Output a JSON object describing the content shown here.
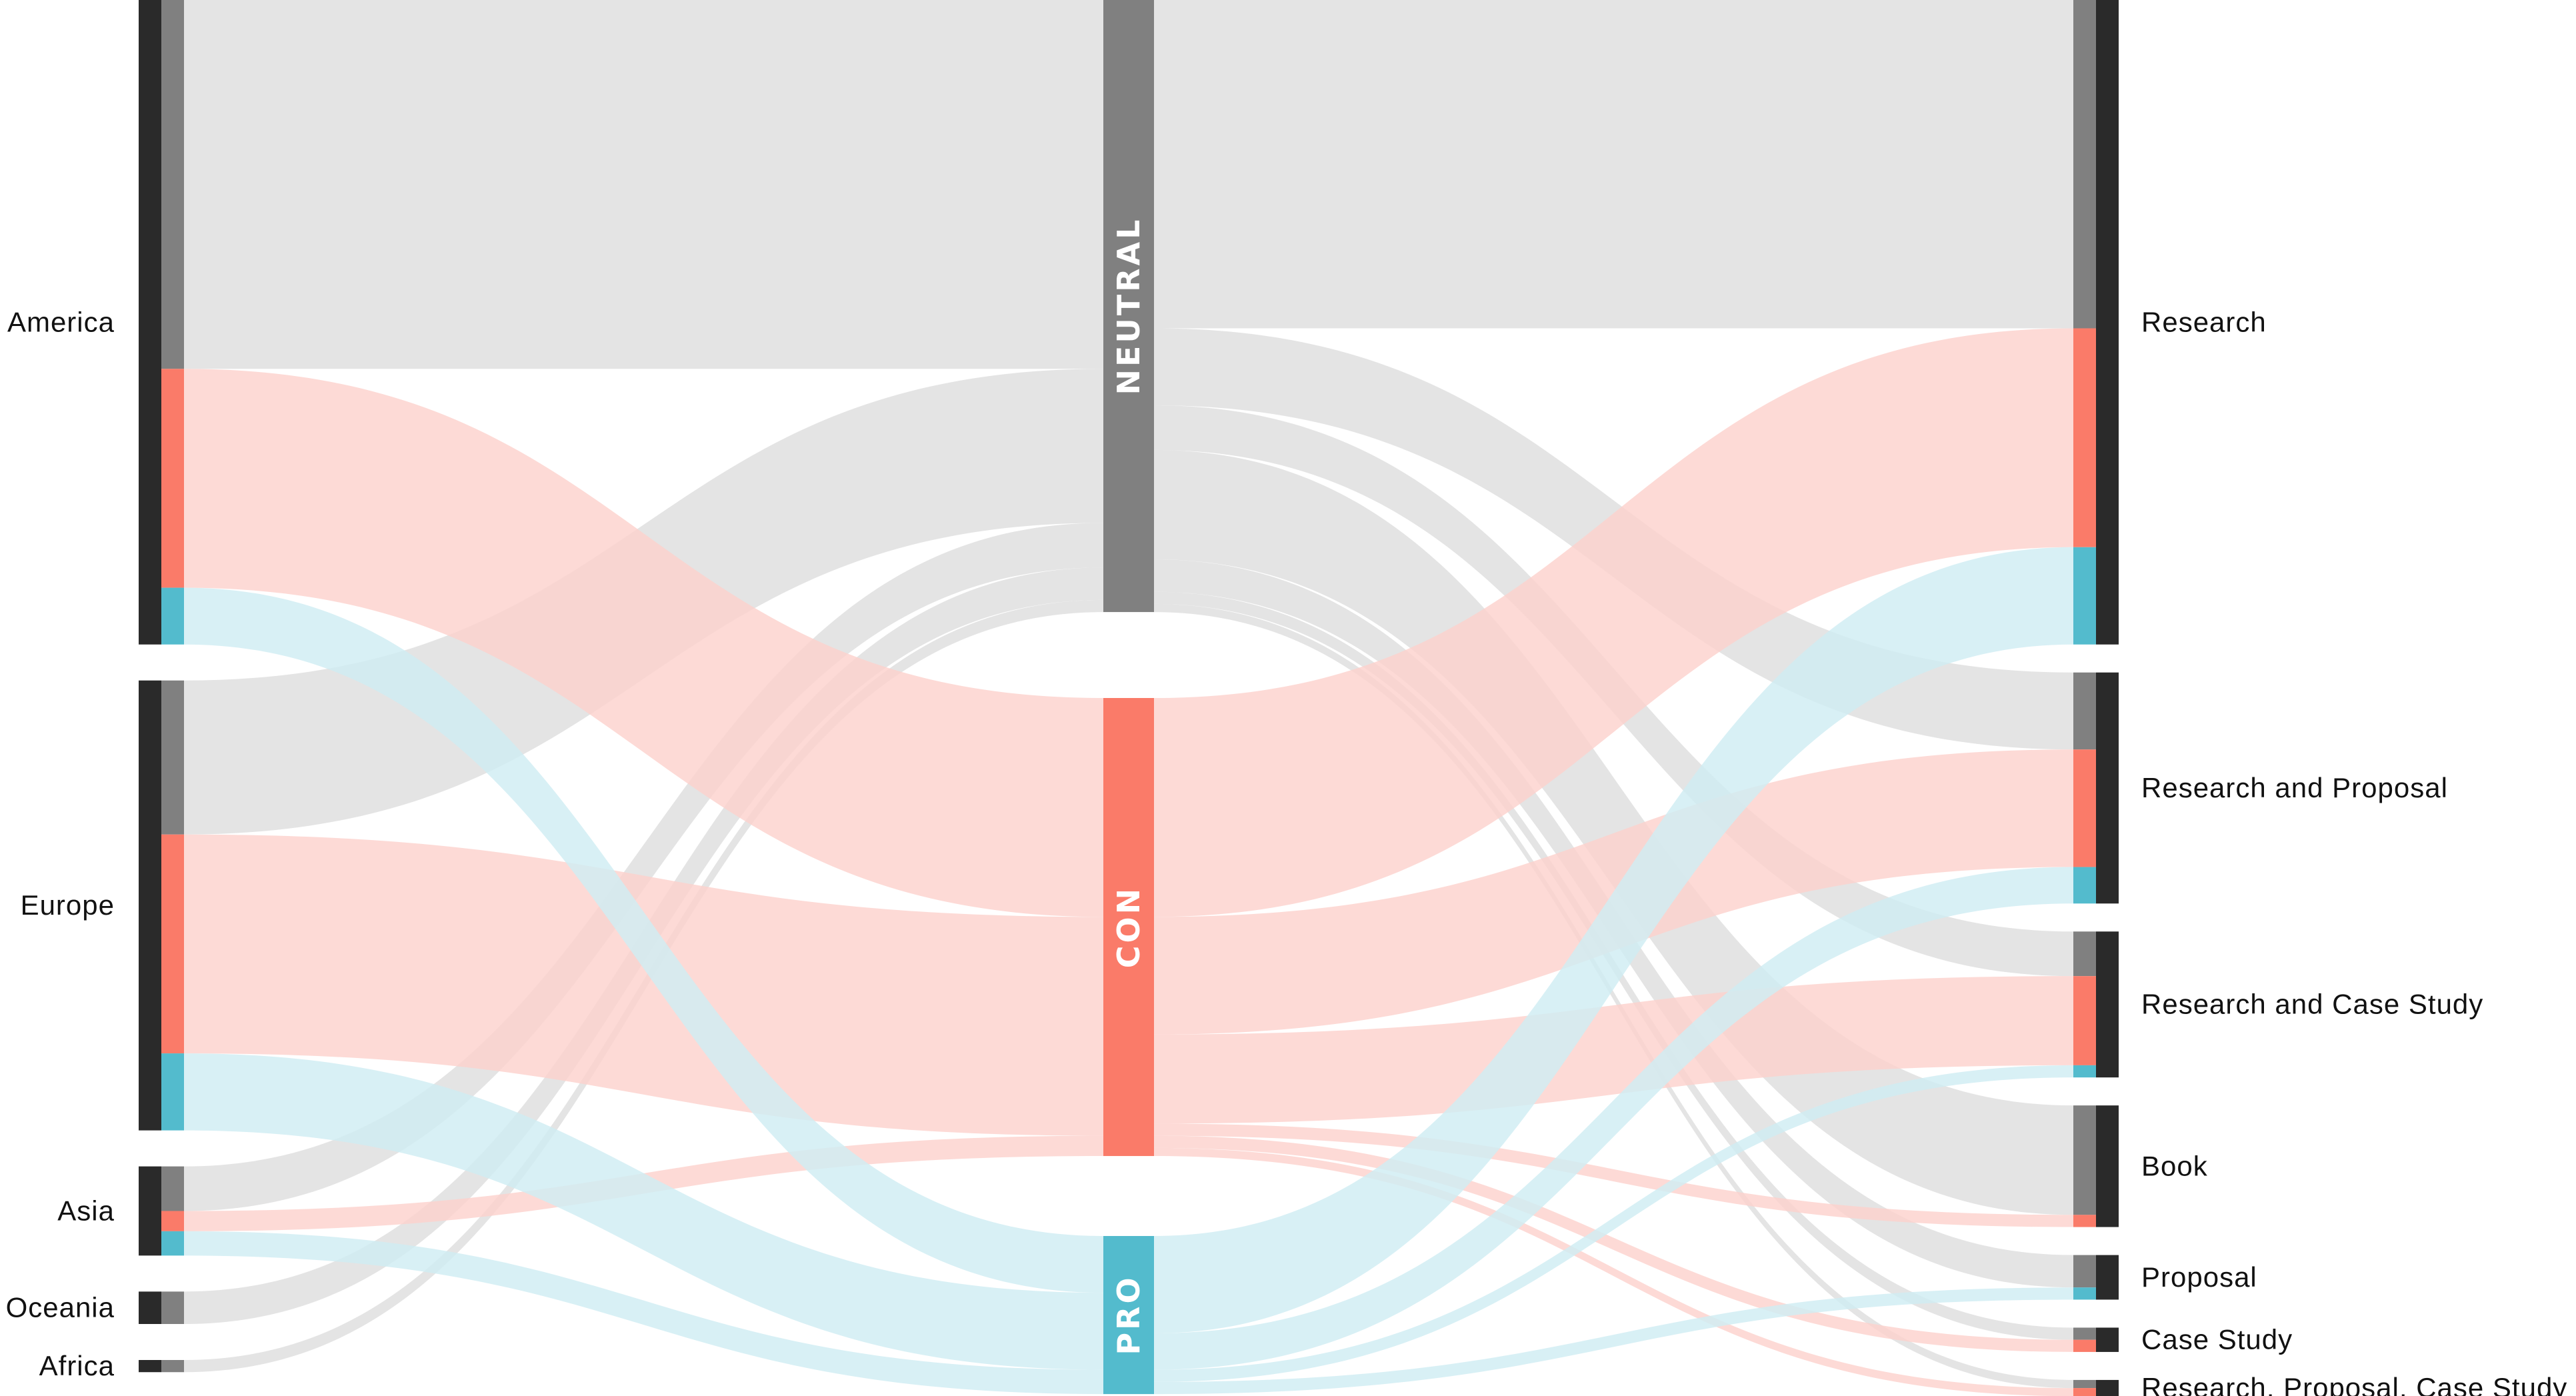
{
  "colors": {
    "neutral": "#808080",
    "con": "#fa7b69",
    "pro": "#53bbcd",
    "dark": "#2a2a2a",
    "link_neutral": "#dedede",
    "link_con": "#fcd2cd",
    "link_pro": "#cfedf3"
  },
  "chart_data": {
    "type": "sankey",
    "left_nodes": [
      {
        "id": "america",
        "label": "America",
        "neutral": 91,
        "con": 54,
        "pro": 14
      },
      {
        "id": "europe",
        "label": "Europe",
        "neutral": 38,
        "con": 54,
        "pro": 19
      },
      {
        "id": "asia",
        "label": "Asia",
        "neutral": 11,
        "con": 5,
        "pro": 6
      },
      {
        "id": "oceania",
        "label": "Oceania",
        "neutral": 8,
        "con": 0,
        "pro": 0
      },
      {
        "id": "africa",
        "label": "Africa",
        "neutral": 3,
        "con": 0,
        "pro": 0
      }
    ],
    "middle_nodes": [
      {
        "id": "neutral",
        "label": "NEUTRAL"
      },
      {
        "id": "con",
        "label": "CON"
      },
      {
        "id": "pro",
        "label": "PRO"
      }
    ],
    "right_nodes": [
      {
        "id": "research",
        "label": "Research",
        "neutral": 81,
        "con": 54,
        "pro": 24
      },
      {
        "id": "research_proposal",
        "label": "Research and Proposal",
        "neutral": 19,
        "con": 29,
        "pro": 9
      },
      {
        "id": "research_case",
        "label": "Research and Case Study",
        "neutral": 11,
        "con": 22,
        "pro": 3
      },
      {
        "id": "book",
        "label": "Book",
        "neutral": 27,
        "con": 3,
        "pro": 0
      },
      {
        "id": "proposal",
        "label": "Proposal",
        "neutral": 8,
        "con": 0,
        "pro": 3
      },
      {
        "id": "case_study",
        "label": "Case Study",
        "neutral": 3,
        "con": 3,
        "pro": 0
      },
      {
        "id": "rpc",
        "label": "Research, Proposal, Case Study",
        "neutral": 2,
        "con": 2,
        "pro": 0
      }
    ]
  }
}
